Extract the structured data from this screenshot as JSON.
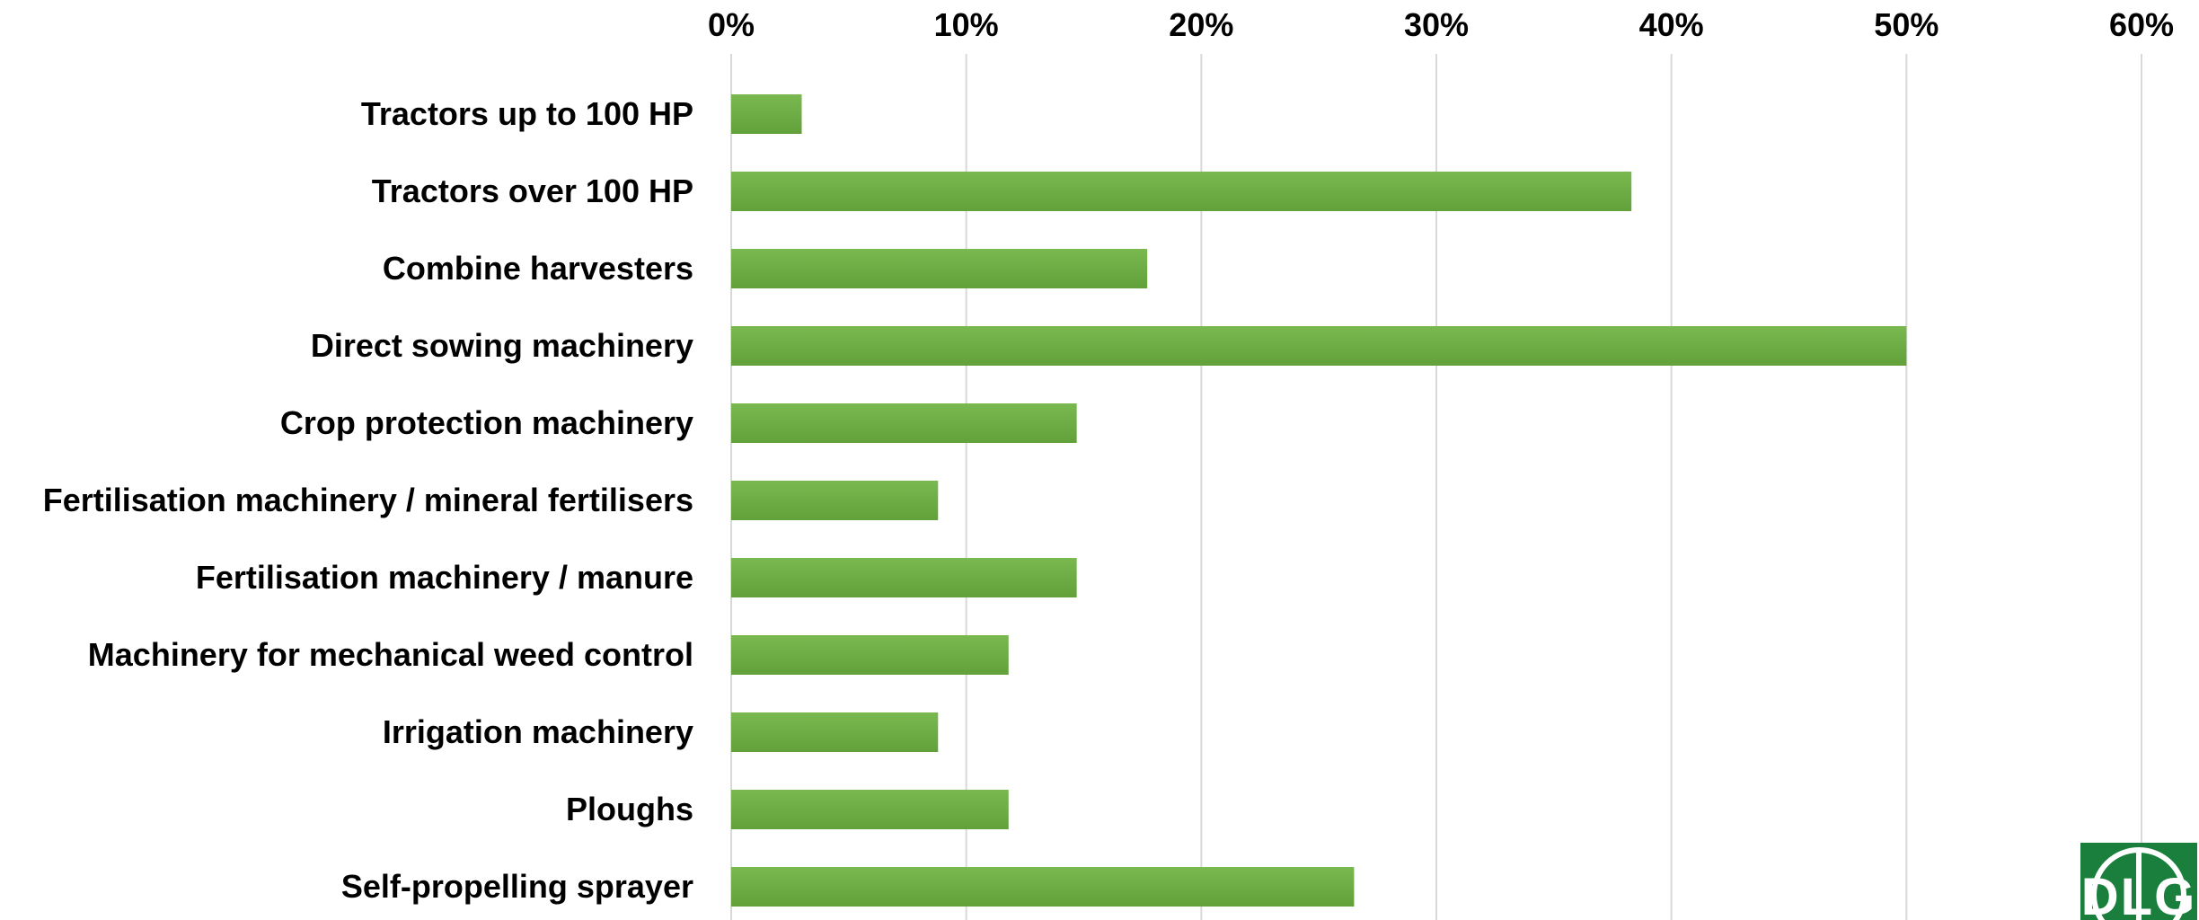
{
  "chart_data": {
    "type": "bar",
    "orientation": "horizontal",
    "categories": [
      "Tractors up to 100 HP",
      "Tractors over 100 HP",
      "Combine harvesters",
      "Direct sowing machinery",
      "Crop protection machinery",
      "Fertilisation machinery / mineral fertilisers",
      "Fertilisation machinery / manure",
      "Machinery for mechanical weed control",
      "Irrigation machinery",
      "Ploughs",
      "Self-propelling sprayer"
    ],
    "values": [
      3,
      38.3,
      17.7,
      50,
      14.7,
      8.8,
      14.7,
      11.8,
      8.8,
      11.8,
      26.5
    ],
    "xlim": [
      0,
      60
    ],
    "xticks": [
      "0%",
      "10%",
      "20%",
      "30%",
      "40%",
      "50%",
      "60%"
    ],
    "x_axis_position": "top",
    "grid": true,
    "legend": "none",
    "title": "",
    "xlabel": "",
    "ylabel": "",
    "colors": {
      "bar_top": "#7ab850",
      "bar_bottom": "#62a13a",
      "grid": "#d9d9d9"
    }
  },
  "logo": {
    "text": "DLG",
    "color": "#1a7f3c",
    "icon": "dlg-logo-icon"
  }
}
